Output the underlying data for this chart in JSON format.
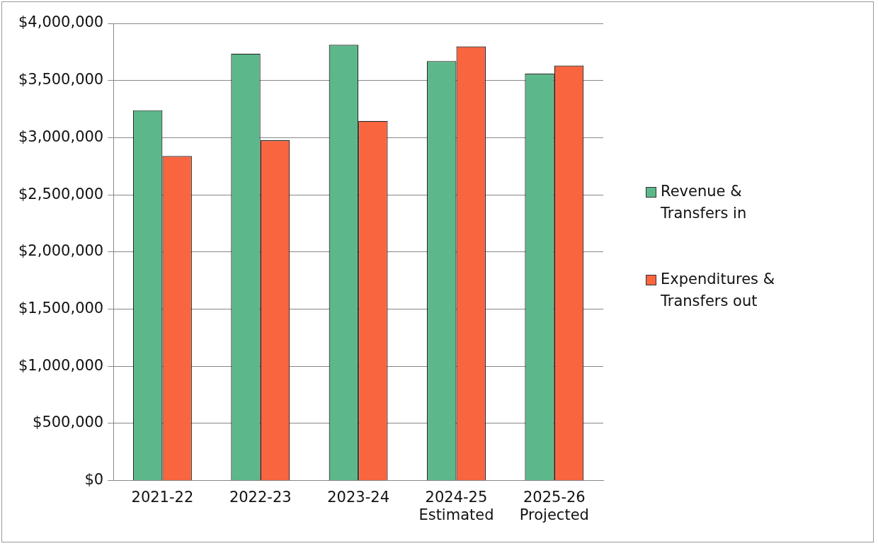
{
  "chart_data": {
    "type": "bar",
    "categories": [
      "2021-22",
      "2022-23",
      "2023-24",
      "2024-25\nEstimated",
      "2025-26\nProjected"
    ],
    "series": [
      {
        "name": "Revenue & Transfers in",
        "color": "#5cb88a",
        "values": [
          3240000,
          3735000,
          3812000,
          3670000,
          3560000
        ]
      },
      {
        "name": "Expenditures & Transfers out",
        "color": "#f8653f",
        "values": [
          2840000,
          2977000,
          3146000,
          3799000,
          3631000
        ]
      }
    ],
    "ylim": [
      0,
      4000000
    ],
    "yticks": [
      {
        "value": 0,
        "label": "$0"
      },
      {
        "value": 500000,
        "label": "$500,000"
      },
      {
        "value": 1000000,
        "label": "$1,000,000"
      },
      {
        "value": 1500000,
        "label": "$1,500,000"
      },
      {
        "value": 2000000,
        "label": "$2,000,000"
      },
      {
        "value": 2500000,
        "label": "$2,500,000"
      },
      {
        "value": 3000000,
        "label": "$3,000,000"
      },
      {
        "value": 3500000,
        "label": "$3,500,000"
      },
      {
        "value": 4000000,
        "label": "$4,000,000"
      }
    ],
    "grid": "y",
    "legend": "right"
  }
}
